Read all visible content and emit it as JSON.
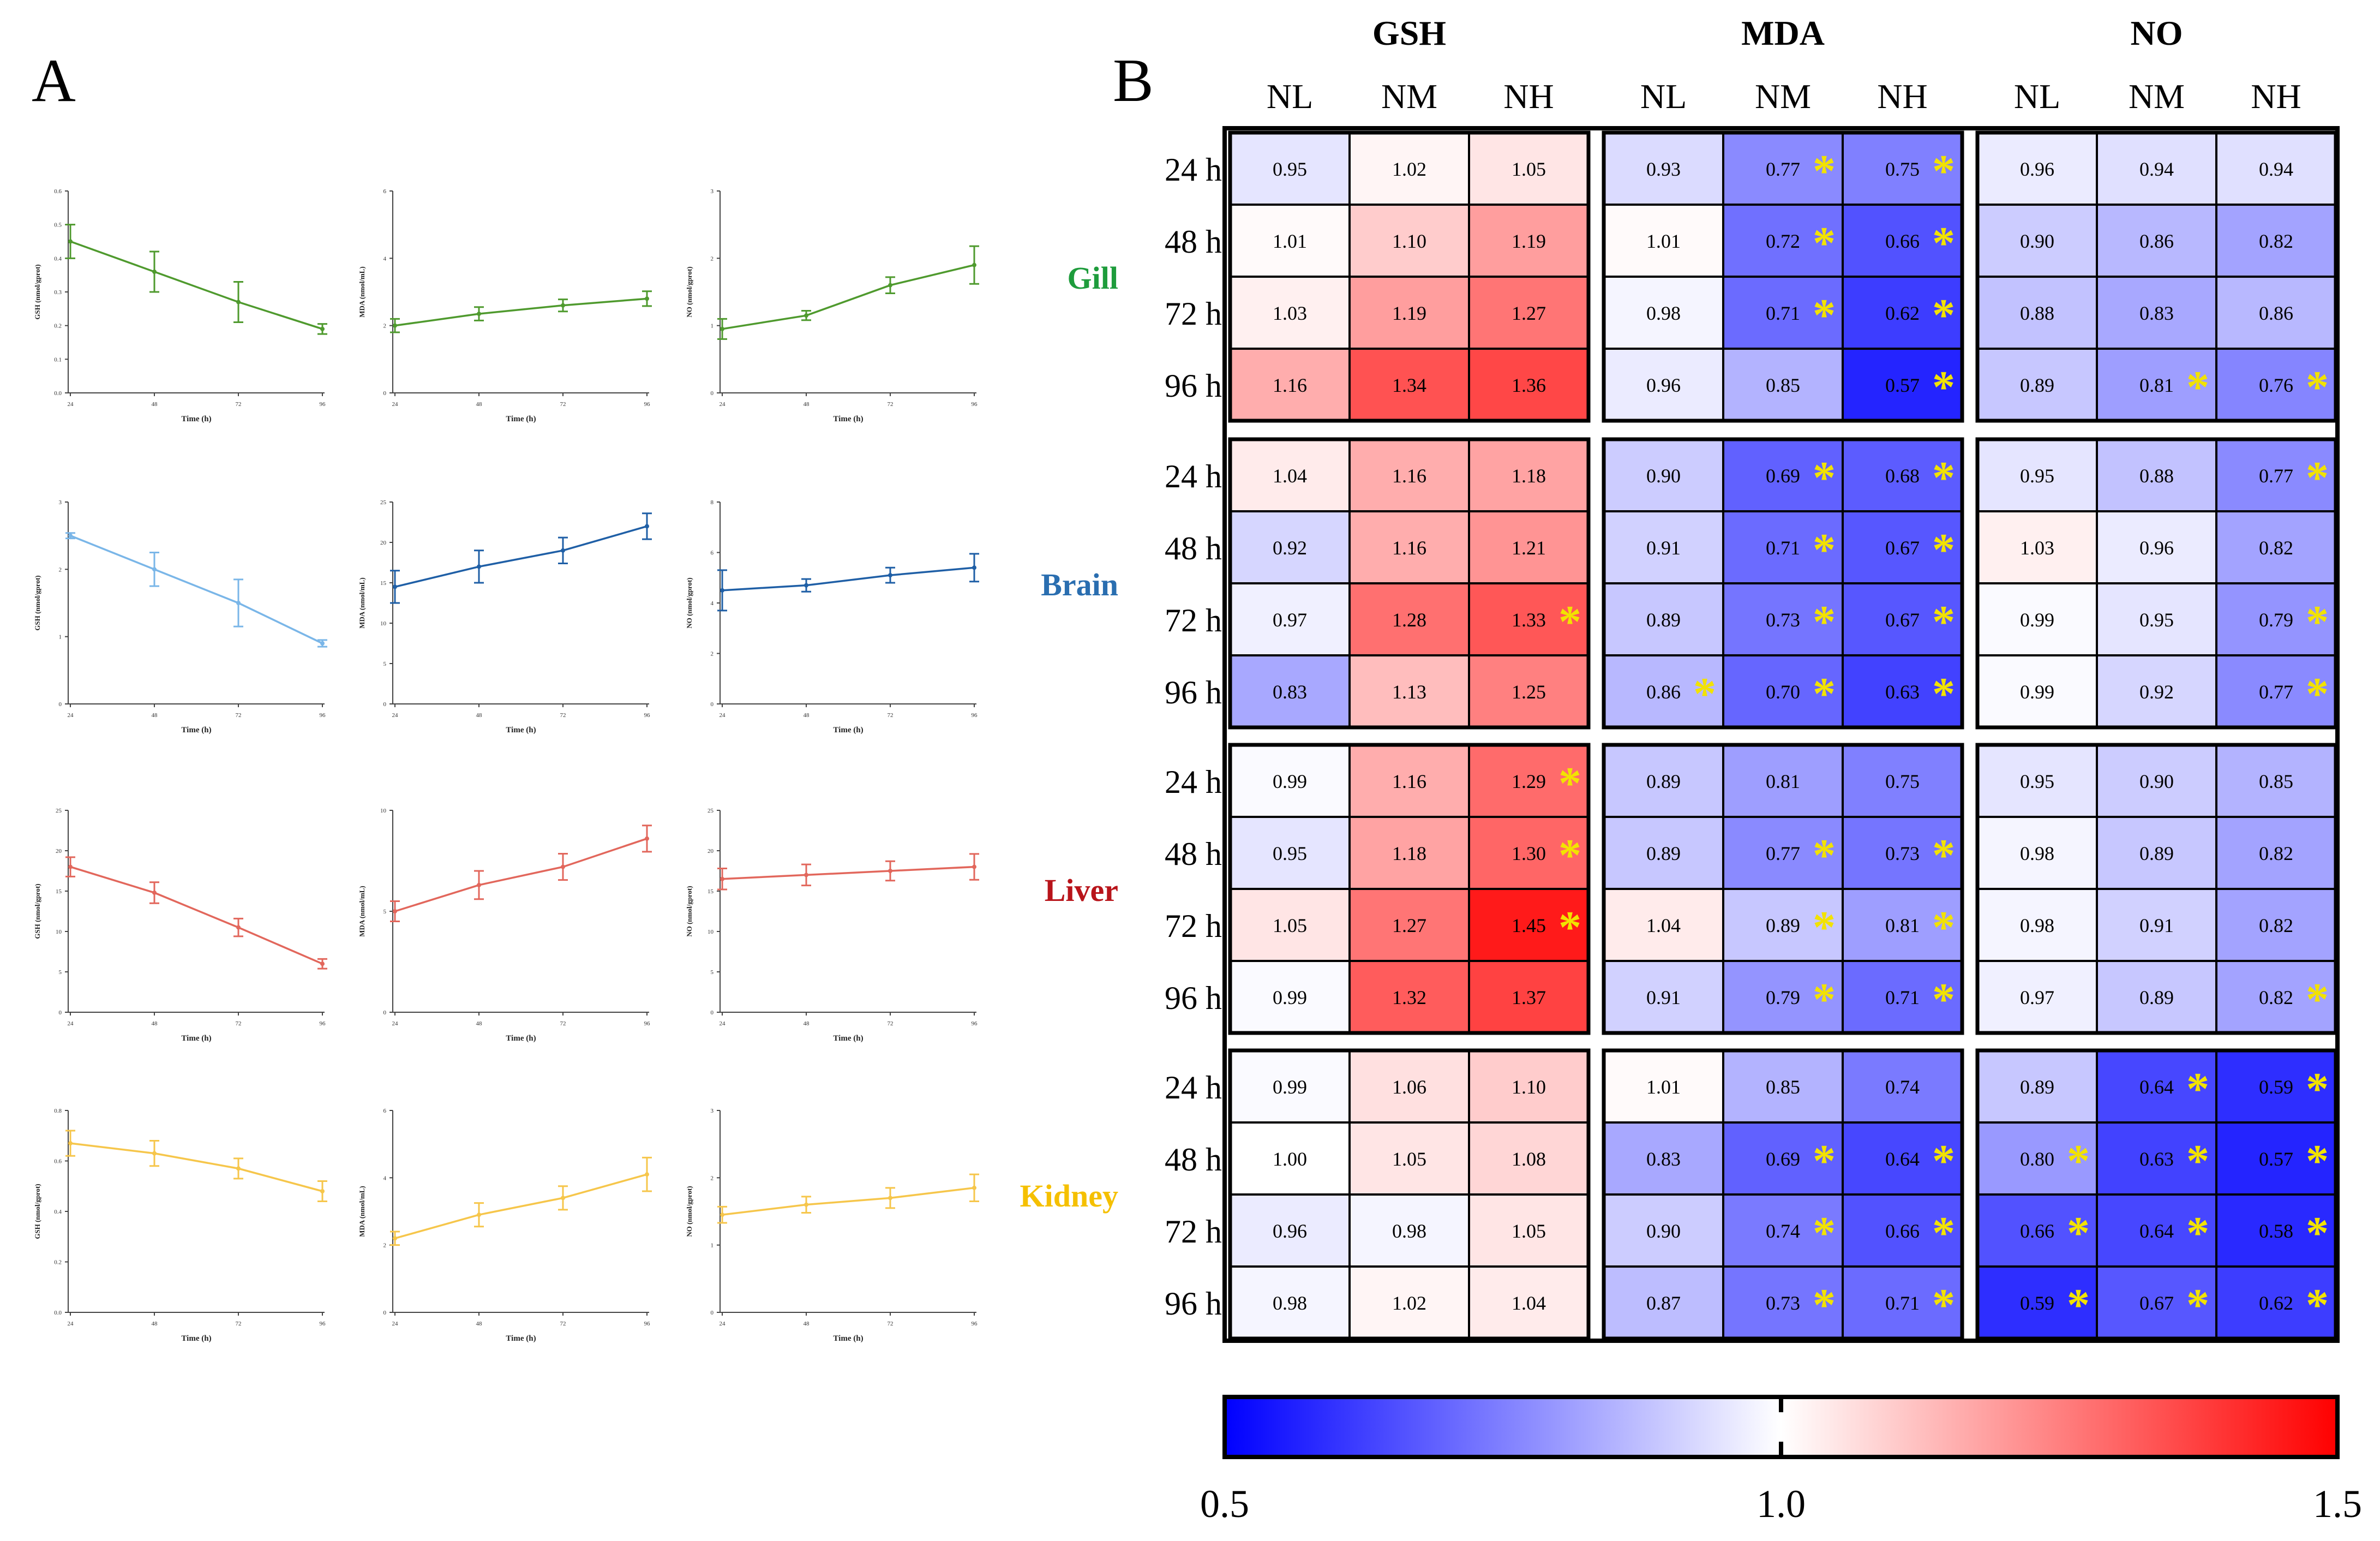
{
  "panel_labels": {
    "a": "A",
    "b": "B"
  },
  "chart_data": [
    {
      "type": "line",
      "panel": "A",
      "tissue": "Gill",
      "color": "#4f9a2e",
      "x": [
        24,
        48,
        72,
        96
      ],
      "values": [
        0.45,
        0.36,
        0.27,
        0.19
      ],
      "errors": [
        0.05,
        0.06,
        0.06,
        0.015
      ],
      "xlabel": "Time (h)",
      "ylabel": "GSH (nmol/gprot)",
      "ylim": [
        0,
        0.6
      ],
      "yticks": [
        "0.0",
        "0.1",
        "0.2",
        "0.3",
        "0.4",
        "0.5",
        "0.6"
      ],
      "ytick_values": [
        0,
        0.1,
        0.2,
        0.3,
        0.4,
        0.5,
        0.6
      ],
      "xticks": [
        "24",
        "48",
        "72",
        "96"
      ]
    },
    {
      "type": "line",
      "panel": "A",
      "tissue": "Gill",
      "color": "#4f9a2e",
      "x": [
        24,
        48,
        72,
        96
      ],
      "values": [
        2.0,
        2.35,
        2.6,
        2.8
      ],
      "errors": [
        0.2,
        0.2,
        0.18,
        0.22
      ],
      "xlabel": "Time (h)",
      "ylabel": "MDA (nmol/mL)",
      "ylim": [
        0,
        6
      ],
      "yticks": [
        "0",
        "2",
        "4",
        "6"
      ],
      "ytick_values": [
        0,
        2,
        4,
        6
      ],
      "xticks": [
        "24",
        "48",
        "72",
        "96"
      ]
    },
    {
      "type": "line",
      "panel": "A",
      "tissue": "Gill",
      "color": "#4f9a2e",
      "x": [
        24,
        48,
        72,
        96
      ],
      "values": [
        0.95,
        1.15,
        1.6,
        1.9
      ],
      "errors": [
        0.15,
        0.07,
        0.12,
        0.28
      ],
      "xlabel": "Time (h)",
      "ylabel": "NO (nmol/gprot)",
      "ylim": [
        0,
        3
      ],
      "yticks": [
        "0",
        "1",
        "2",
        "3"
      ],
      "ytick_values": [
        0,
        1,
        2,
        3
      ],
      "xticks": [
        "24",
        "48",
        "72",
        "96"
      ]
    },
    {
      "type": "line",
      "panel": "A",
      "tissue": "Brain",
      "color": "#7ab6e8",
      "x": [
        24,
        48,
        72,
        96
      ],
      "values": [
        2.5,
        2.0,
        1.5,
        0.9
      ],
      "errors": [
        0.04,
        0.25,
        0.35,
        0.05
      ],
      "xlabel": "Time (h)",
      "ylabel": "GSH (nmol/gprot)",
      "ylim": [
        0,
        3
      ],
      "yticks": [
        "0",
        "1",
        "2",
        "3"
      ],
      "ytick_values": [
        0,
        1,
        2,
        3
      ],
      "xticks": [
        "24",
        "48",
        "72",
        "96"
      ]
    },
    {
      "type": "line",
      "panel": "A",
      "tissue": "Brain",
      "color": "#1f5fa6",
      "x": [
        24,
        48,
        72,
        96
      ],
      "values": [
        14.5,
        17.0,
        19.0,
        22.0
      ],
      "errors": [
        2.0,
        2.0,
        1.6,
        1.6
      ],
      "xlabel": "Time (h)",
      "ylabel": "MDA (nmol/mL)",
      "ylim": [
        0,
        25
      ],
      "yticks": [
        "0",
        "5",
        "10",
        "15",
        "20",
        "25"
      ],
      "ytick_values": [
        0,
        5,
        10,
        15,
        20,
        25
      ],
      "xticks": [
        "24",
        "48",
        "72",
        "96"
      ]
    },
    {
      "type": "line",
      "panel": "A",
      "tissue": "Brain",
      "color": "#1f5fa6",
      "x": [
        24,
        48,
        72,
        96
      ],
      "values": [
        4.5,
        4.7,
        5.1,
        5.4
      ],
      "errors": [
        0.8,
        0.25,
        0.3,
        0.55
      ],
      "xlabel": "Time (h)",
      "ylabel": "NO (nmol/gprot)",
      "ylim": [
        0,
        8
      ],
      "yticks": [
        "0",
        "2",
        "4",
        "6",
        "8"
      ],
      "ytick_values": [
        0,
        2,
        4,
        6,
        8
      ],
      "xticks": [
        "24",
        "48",
        "72",
        "96"
      ]
    },
    {
      "type": "line",
      "panel": "A",
      "tissue": "Liver",
      "color": "#e2675c",
      "x": [
        24,
        48,
        72,
        96
      ],
      "values": [
        18.0,
        14.8,
        10.5,
        6.0
      ],
      "errors": [
        1.2,
        1.3,
        1.1,
        0.6
      ],
      "xlabel": "Time (h)",
      "ylabel": "GSH (nmol/gprot)",
      "ylim": [
        0,
        25
      ],
      "yticks": [
        "0",
        "5",
        "10",
        "15",
        "20",
        "25"
      ],
      "ytick_values": [
        0,
        5,
        10,
        15,
        20,
        25
      ],
      "xticks": [
        "24",
        "48",
        "72",
        "96"
      ]
    },
    {
      "type": "line",
      "panel": "A",
      "tissue": "Liver",
      "color": "#e2675c",
      "x": [
        24,
        48,
        72,
        96
      ],
      "values": [
        5.0,
        6.3,
        7.2,
        8.6
      ],
      "errors": [
        0.5,
        0.7,
        0.65,
        0.65
      ],
      "xlabel": "Time (h)",
      "ylabel": "MDA (nmol/mL)",
      "ylim": [
        0,
        10
      ],
      "yticks": [
        "0",
        "5",
        "10"
      ],
      "ytick_values": [
        0,
        5,
        10
      ],
      "xticks": [
        "24",
        "48",
        "72",
        "96"
      ]
    },
    {
      "type": "line",
      "panel": "A",
      "tissue": "Liver",
      "color": "#e2675c",
      "x": [
        24,
        48,
        72,
        96
      ],
      "values": [
        16.5,
        17.0,
        17.5,
        18.0
      ],
      "errors": [
        1.3,
        1.3,
        1.2,
        1.6
      ],
      "xlabel": "Time (h)",
      "ylabel": "NO (nmol/gprot)",
      "ylim": [
        0,
        25
      ],
      "yticks": [
        "0",
        "5",
        "10",
        "15",
        "20",
        "25"
      ],
      "ytick_values": [
        0,
        5,
        10,
        15,
        20,
        25
      ],
      "xticks": [
        "24",
        "48",
        "72",
        "96"
      ]
    },
    {
      "type": "line",
      "panel": "A",
      "tissue": "Kidney",
      "color": "#f6c64b",
      "x": [
        24,
        48,
        72,
        96
      ],
      "values": [
        0.67,
        0.63,
        0.57,
        0.48
      ],
      "errors": [
        0.05,
        0.05,
        0.04,
        0.04
      ],
      "xlabel": "Time (h)",
      "ylabel": "GSH (nmol/gprot)",
      "ylim": [
        0,
        0.8
      ],
      "yticks": [
        "0.0",
        "0.2",
        "0.4",
        "0.6",
        "0.8"
      ],
      "ytick_values": [
        0,
        0.2,
        0.4,
        0.6,
        0.8
      ],
      "xticks": [
        "24",
        "48",
        "72",
        "96"
      ]
    },
    {
      "type": "line",
      "panel": "A",
      "tissue": "Kidney",
      "color": "#f6c64b",
      "x": [
        24,
        48,
        72,
        96
      ],
      "values": [
        2.2,
        2.9,
        3.4,
        4.1
      ],
      "errors": [
        0.2,
        0.35,
        0.35,
        0.5
      ],
      "xlabel": "Time (h)",
      "ylabel": "MDA (nmol/mL)",
      "ylim": [
        0,
        6
      ],
      "yticks": [
        "0",
        "2",
        "4",
        "6"
      ],
      "ytick_values": [
        0,
        2,
        4,
        6
      ],
      "xticks": [
        "24",
        "48",
        "72",
        "96"
      ]
    },
    {
      "type": "line",
      "panel": "A",
      "tissue": "Kidney",
      "color": "#f6c64b",
      "x": [
        24,
        48,
        72,
        96
      ],
      "values": [
        1.45,
        1.6,
        1.7,
        1.85
      ],
      "errors": [
        0.12,
        0.12,
        0.15,
        0.2
      ],
      "xlabel": "Time (h)",
      "ylabel": "NO (nmol/gprot)",
      "ylim": [
        0,
        3
      ],
      "yticks": [
        "0",
        "1",
        "2",
        "3"
      ],
      "ytick_values": [
        0,
        1,
        2,
        3
      ],
      "xticks": [
        "24",
        "48",
        "72",
        "96"
      ]
    },
    {
      "type": "heatmap",
      "panel": "B",
      "metrics": [
        "GSH",
        "MDA",
        "NO"
      ],
      "groups": [
        "NL",
        "NM",
        "NH"
      ],
      "times": [
        "24 h",
        "48 h",
        "72 h",
        "96 h"
      ],
      "tissues": [
        {
          "name": "Gill",
          "color": "#1e9c3c",
          "values": [
            [
              "0.95",
              "1.02",
              "1.05",
              "0.93",
              "0.77",
              "0.75",
              "0.96",
              "0.94",
              "0.94"
            ],
            [
              "1.01",
              "1.10",
              "1.19",
              "1.01",
              "0.72",
              "0.66",
              "0.90",
              "0.86",
              "0.82"
            ],
            [
              "1.03",
              "1.19",
              "1.27",
              "0.98",
              "0.71",
              "0.62",
              "0.88",
              "0.83",
              "0.86"
            ],
            [
              "1.16",
              "1.34",
              "1.36",
              "0.96",
              "0.85",
              "0.57",
              "0.89",
              "0.81",
              "0.76"
            ]
          ],
          "sig": [
            [
              0,
              0,
              0,
              0,
              1,
              1,
              0,
              0,
              0
            ],
            [
              0,
              0,
              0,
              0,
              1,
              1,
              0,
              0,
              0
            ],
            [
              0,
              0,
              0,
              0,
              1,
              1,
              0,
              0,
              0
            ],
            [
              0,
              0,
              0,
              0,
              0,
              1,
              0,
              1,
              1
            ]
          ]
        },
        {
          "name": "Brain",
          "color": "#2a6eb0",
          "values": [
            [
              "1.04",
              "1.16",
              "1.18",
              "0.90",
              "0.69",
              "0.68",
              "0.95",
              "0.88",
              "0.77"
            ],
            [
              "0.92",
              "1.16",
              "1.21",
              "0.91",
              "0.71",
              "0.67",
              "1.03",
              "0.96",
              "0.82"
            ],
            [
              "0.97",
              "1.28",
              "1.33",
              "0.89",
              "0.73",
              "0.67",
              "0.99",
              "0.95",
              "0.79"
            ],
            [
              "0.83",
              "1.13",
              "1.25",
              "0.86",
              "0.70",
              "0.63",
              "0.99",
              "0.92",
              "0.77"
            ]
          ],
          "sig": [
            [
              0,
              0,
              0,
              0,
              1,
              1,
              0,
              0,
              1
            ],
            [
              0,
              0,
              0,
              0,
              1,
              1,
              0,
              0,
              0
            ],
            [
              0,
              0,
              1,
              0,
              1,
              1,
              0,
              0,
              1
            ],
            [
              0,
              0,
              0,
              1,
              1,
              1,
              0,
              0,
              1
            ]
          ]
        },
        {
          "name": "Liver",
          "color": "#b8141a",
          "values": [
            [
              "0.99",
              "1.16",
              "1.29",
              "0.89",
              "0.81",
              "0.75",
              "0.95",
              "0.90",
              "0.85"
            ],
            [
              "0.95",
              "1.18",
              "1.30",
              "0.89",
              "0.77",
              "0.73",
              "0.98",
              "0.89",
              "0.82"
            ],
            [
              "1.05",
              "1.27",
              "1.45",
              "1.04",
              "0.89",
              "0.81",
              "0.98",
              "0.91",
              "0.82"
            ],
            [
              "0.99",
              "1.32",
              "1.37",
              "0.91",
              "0.79",
              "0.71",
              "0.97",
              "0.89",
              "0.82"
            ]
          ],
          "sig": [
            [
              0,
              0,
              1,
              0,
              0,
              0,
              0,
              0,
              0
            ],
            [
              0,
              0,
              1,
              0,
              1,
              1,
              0,
              0,
              0
            ],
            [
              0,
              0,
              1,
              0,
              1,
              1,
              0,
              0,
              0
            ],
            [
              0,
              0,
              0,
              0,
              1,
              1,
              0,
              0,
              1
            ]
          ]
        },
        {
          "name": "Kidney",
          "color": "#f5c000",
          "values": [
            [
              "0.99",
              "1.06",
              "1.10",
              "1.01",
              "0.85",
              "0.74",
              "0.89",
              "0.64",
              "0.59"
            ],
            [
              "1.00",
              "1.05",
              "1.08",
              "0.83",
              "0.69",
              "0.64",
              "0.80",
              "0.63",
              "0.57"
            ],
            [
              "0.96",
              "0.98",
              "1.05",
              "0.90",
              "0.74",
              "0.66",
              "0.66",
              "0.64",
              "0.58"
            ],
            [
              "0.98",
              "1.02",
              "1.04",
              "0.87",
              "0.73",
              "0.71",
              "0.59",
              "0.67",
              "0.62"
            ]
          ],
          "sig": [
            [
              0,
              0,
              0,
              0,
              0,
              0,
              0,
              1,
              1
            ],
            [
              0,
              0,
              0,
              0,
              1,
              1,
              1,
              1,
              1
            ],
            [
              0,
              0,
              0,
              0,
              1,
              1,
              1,
              1,
              1
            ],
            [
              0,
              0,
              0,
              0,
              1,
              1,
              1,
              1,
              1
            ]
          ]
        }
      ],
      "significance_mark": "*",
      "colorbar": {
        "min": 0.5,
        "mid": 1.0,
        "max": 1.5,
        "labels": [
          "0.5",
          "1.0",
          "1.5"
        ],
        "low_color": "#0000ff",
        "mid_color": "#ffffff",
        "high_color": "#ff0000"
      }
    }
  ]
}
